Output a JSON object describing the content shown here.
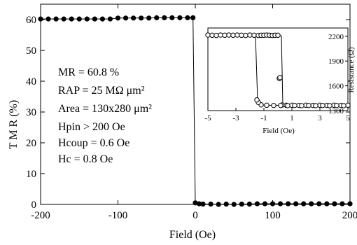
{
  "chart_data": [
    {
      "type": "scatter",
      "xlabel": "Field (Oe)",
      "ylabel": "T M R  (%)",
      "xlim": [
        -200,
        200
      ],
      "ylim": [
        0,
        65
      ],
      "xticks": [
        -200,
        -100,
        0,
        100,
        200
      ],
      "yticks": [
        0,
        10,
        20,
        30,
        40,
        50,
        60
      ],
      "xtick_labels": [
        "-200",
        "-100",
        "0",
        "100",
        "200"
      ],
      "ytick_labels": [
        "0",
        "10",
        "20",
        "30",
        "40",
        "50",
        "60"
      ],
      "series": [
        {
          "name": "",
          "color": "#000000",
          "marker": "filled-circle",
          "points": [
            [
              -200,
              60.2
            ],
            [
              -190,
              60.2
            ],
            [
              -180,
              60.2
            ],
            [
              -170,
              60.2
            ],
            [
              -160,
              60.2
            ],
            [
              -150,
              60.2
            ],
            [
              -140,
              60.2
            ],
            [
              -130,
              60.2
            ],
            [
              -120,
              60.2
            ],
            [
              -110,
              60.2
            ],
            [
              -100,
              60.5
            ],
            [
              -90,
              60.5
            ],
            [
              -80,
              60.5
            ],
            [
              -70,
              60.5
            ],
            [
              -60,
              60.5
            ],
            [
              -50,
              60.6
            ],
            [
              -40,
              60.6
            ],
            [
              -30,
              60.6
            ],
            [
              -20,
              60.6
            ],
            [
              -10,
              60.6
            ],
            [
              -3,
              60.6
            ],
            [
              0,
              0.5
            ],
            [
              5,
              0.2
            ],
            [
              10,
              0.1
            ],
            [
              20,
              0.1
            ],
            [
              30,
              0
            ],
            [
              40,
              0.1
            ],
            [
              50,
              0
            ],
            [
              60,
              0.1
            ],
            [
              70,
              0.1
            ],
            [
              80,
              0.2
            ],
            [
              90,
              0.2
            ],
            [
              100,
              0.2
            ],
            [
              110,
              0.2
            ],
            [
              120,
              0.2
            ],
            [
              130,
              0.2
            ],
            [
              140,
              0.2
            ],
            [
              150,
              0.2
            ],
            [
              160,
              0.2
            ],
            [
              170,
              0.2
            ],
            [
              180,
              0.2
            ],
            [
              190,
              0.2
            ],
            [
              200,
              0.2
            ]
          ]
        }
      ],
      "annotations": [
        "MR  = 60.8 %",
        "RAP = 25 MΩ μm²",
        "Area = 130x280 μm²",
        "Hpin  >  200 Oe",
        "Hcoup = 0.6 Oe",
        "Hc   =    0.8 Oe"
      ]
    },
    {
      "type": "scatter",
      "xlabel": "Field (Oe)",
      "ylabel": "Resistance (Ω)",
      "xlim": [
        -5,
        5
      ],
      "ylim": [
        1300,
        2300
      ],
      "xticks": [
        -5,
        -3,
        -1,
        1,
        3,
        5
      ],
      "yticks": [
        1300,
        1600,
        1900,
        2200
      ],
      "xtick_labels": [
        "-5",
        "-3",
        "-1",
        "1",
        "3",
        "5"
      ],
      "ytick_labels": [
        "1300",
        "1600",
        "1900",
        "2200"
      ],
      "series": [
        {
          "name": "",
          "color": "#000000",
          "marker": "open-circle",
          "points": [
            [
              -5,
              2215
            ],
            [
              -4.7,
              2212
            ],
            [
              -4.4,
              2210
            ],
            [
              -4.1,
              2215
            ],
            [
              -3.8,
              2212
            ],
            [
              -3.5,
              2215
            ],
            [
              -3.2,
              2212
            ],
            [
              -2.9,
              2215
            ],
            [
              -2.6,
              2212
            ],
            [
              -2.3,
              2210
            ],
            [
              -2,
              2215
            ],
            [
              -1.7,
              2212
            ],
            [
              -1.4,
              2210
            ],
            [
              -1.2,
              2212
            ],
            [
              -1,
              2212
            ],
            [
              -0.8,
              2215
            ],
            [
              -0.6,
              2212
            ],
            [
              -0.4,
              2210
            ],
            [
              -0.2,
              2212
            ],
            [
              0,
              2212
            ],
            [
              0.1,
              1690
            ],
            [
              0.15,
              1700
            ],
            [
              0.3,
              1368
            ],
            [
              0.6,
              1365
            ],
            [
              1,
              1365
            ],
            [
              1.5,
              1363
            ],
            [
              2,
              1365
            ],
            [
              2.5,
              1363
            ],
            [
              3,
              1365
            ],
            [
              3.5,
              1363
            ],
            [
              4,
              1365
            ],
            [
              4.5,
              1363
            ],
            [
              5,
              1365
            ],
            [
              4.7,
              1360
            ],
            [
              4.2,
              1362
            ],
            [
              3.7,
              1360
            ],
            [
              3.2,
              1362
            ],
            [
              2.7,
              1360
            ],
            [
              2.2,
              1362
            ],
            [
              1.7,
              1360
            ],
            [
              1.2,
              1362
            ],
            [
              0.7,
              1360
            ],
            [
              0.2,
              1362
            ],
            [
              -0.3,
              1362
            ],
            [
              -0.8,
              1365
            ],
            [
              -1.2,
              1370
            ],
            [
              -1.4,
              1400
            ],
            [
              -1.5,
              1430
            ]
          ]
        }
      ],
      "loop_segments": [
        [
          [
            -5,
            2205
          ],
          [
            0.25,
            2205
          ],
          [
            0.35,
            1375
          ],
          [
            5,
            1362
          ]
        ],
        [
          [
            5,
            1360
          ],
          [
            -1.3,
            1365
          ],
          [
            -1.45,
            1420
          ],
          [
            -1.6,
            2200
          ],
          [
            -5,
            2210
          ]
        ]
      ]
    }
  ]
}
